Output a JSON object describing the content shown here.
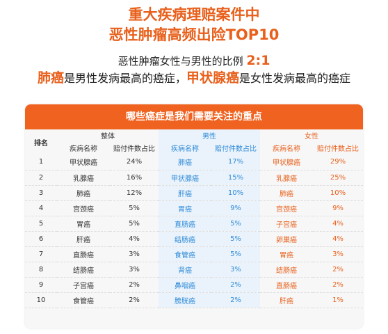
{
  "header": {
    "title_line1": "重大疾病理赔案件中",
    "title_line2": "恶性肿瘤高频出险TOP10",
    "ratio_text": "恶性肿瘤女性与男性的比例",
    "ratio_value": "2:1",
    "summary_hl1": "肺癌",
    "summary_mid": "是男性发病最高的癌症，",
    "summary_hl2": "甲状腺癌",
    "summary_end": "是女性发病最高的癌症"
  },
  "banner": "哪些癌症是我们需要关注的重点",
  "table": {
    "rank_header": "排名",
    "groups": {
      "overall": "整体",
      "male": "男性",
      "female": "女性"
    },
    "sub_name": "疾病名称",
    "sub_ratio": "赔付件数占比",
    "rows": [
      {
        "rank": "1",
        "o_name": "甲状腺癌",
        "o_pct": "24%",
        "m_name": "肺癌",
        "m_pct": "17%",
        "f_name": "甲状腺癌",
        "f_pct": "29%"
      },
      {
        "rank": "2",
        "o_name": "乳腺癌",
        "o_pct": "16%",
        "m_name": "甲状腺癌",
        "m_pct": "15%",
        "f_name": "乳腺癌",
        "f_pct": "25%"
      },
      {
        "rank": "3",
        "o_name": "肺癌",
        "o_pct": "12%",
        "m_name": "肝癌",
        "m_pct": "10%",
        "f_name": "肺癌",
        "f_pct": "10%"
      },
      {
        "rank": "4",
        "o_name": "宫颈癌",
        "o_pct": "5%",
        "m_name": "胃癌",
        "m_pct": "9%",
        "f_name": "宫颈癌",
        "f_pct": "9%"
      },
      {
        "rank": "5",
        "o_name": "胃癌",
        "o_pct": "5%",
        "m_name": "直肠癌",
        "m_pct": "5%",
        "f_name": "子宫癌",
        "f_pct": "4%"
      },
      {
        "rank": "6",
        "o_name": "肝癌",
        "o_pct": "4%",
        "m_name": "结肠癌",
        "m_pct": "5%",
        "f_name": "卵巢癌",
        "f_pct": "4%"
      },
      {
        "rank": "7",
        "o_name": "直肠癌",
        "o_pct": "3%",
        "m_name": "食管癌",
        "m_pct": "5%",
        "f_name": "胃癌",
        "f_pct": "3%"
      },
      {
        "rank": "8",
        "o_name": "结肠癌",
        "o_pct": "3%",
        "m_name": "肾癌",
        "m_pct": "3%",
        "f_name": "结肠癌",
        "f_pct": "2%"
      },
      {
        "rank": "9",
        "o_name": "子宫癌",
        "o_pct": "2%",
        "m_name": "鼻咽癌",
        "m_pct": "2%",
        "f_name": "直肠癌",
        "f_pct": "2%"
      },
      {
        "rank": "10",
        "o_name": "食管癌",
        "o_pct": "2%",
        "m_name": "膀胱癌",
        "m_pct": "2%",
        "f_name": "肝癌",
        "f_pct": "1%"
      }
    ]
  },
  "colors": {
    "accent": "#e8601c",
    "banner": "#f0621f",
    "male": "#2e8ad8"
  }
}
